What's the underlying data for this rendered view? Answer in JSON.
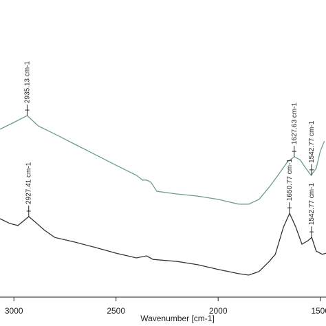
{
  "chart_data": {
    "type": "line",
    "xlabel": "Wavenumber [cm-1]",
    "xlim": [
      3068,
      1472
    ],
    "ylim": [
      0,
      100
    ],
    "xticks": [
      3000,
      2500,
      2000,
      1500
    ],
    "series": [
      {
        "color": "#6f9a90",
        "x": [
          3068,
          3000,
          2935,
          2880,
          2800,
          2700,
          2600,
          2500,
          2400,
          2370,
          2350,
          2330,
          2300,
          2200,
          2100,
          2000,
          1900,
          1850,
          1800,
          1750,
          1700,
          1660,
          1627,
          1600,
          1570,
          1545,
          1520,
          1500,
          1480
        ],
        "values": [
          56.5,
          58.8,
          61.1,
          57.6,
          54.9,
          51.4,
          47.9,
          44.4,
          41.0,
          39.4,
          39.4,
          38.7,
          35.6,
          34.7,
          34.0,
          32.9,
          31.3,
          31.3,
          32.9,
          37.0,
          41.7,
          45.6,
          47.2,
          46.3,
          43.3,
          41.0,
          43.3,
          49.1,
          52.5
        ]
      },
      {
        "color": "#333333",
        "x": [
          3068,
          3020,
          2980,
          2927,
          2900,
          2850,
          2800,
          2700,
          2600,
          2500,
          2400,
          2350,
          2320,
          2200,
          2100,
          2000,
          1900,
          1850,
          1800,
          1750,
          1720,
          1680,
          1650,
          1620,
          1590,
          1560,
          1542,
          1520,
          1490,
          1472
        ],
        "values": [
          26.4,
          24.8,
          24.1,
          27.1,
          25.5,
          22.5,
          20.1,
          18.5,
          16.7,
          14.8,
          13.2,
          13.9,
          12.7,
          12.0,
          10.9,
          9.3,
          7.9,
          7.4,
          8.6,
          12.0,
          14.4,
          23.6,
          28.2,
          23.6,
          17.8,
          19.0,
          20.1,
          15.5,
          14.4,
          14.8
        ]
      }
    ],
    "annotations": [
      {
        "text": "2935.13 cm-1",
        "x": 2935.13,
        "y": 61.1
      },
      {
        "text": "1627.63 cm-1",
        "x": 1627.63,
        "y": 47.2
      },
      {
        "text": "1542.77 cm-1",
        "x": 1542.77,
        "y": 41.0
      },
      {
        "text": "2927.41 cm-1",
        "x": 2927.41,
        "y": 27.1
      },
      {
        "text": "1650.77 cm-1",
        "x": 1650.77,
        "y": 28.2
      },
      {
        "text": "1542.77 cm-1",
        "x": 1542.77,
        "y": 20.1
      }
    ]
  }
}
